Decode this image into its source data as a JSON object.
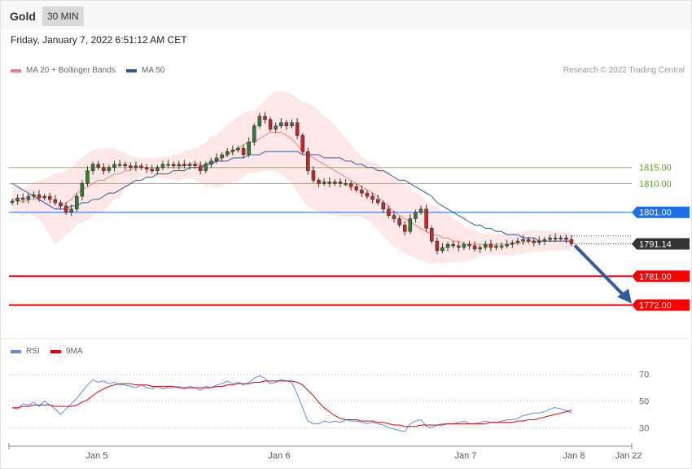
{
  "header": {
    "asset": "Gold",
    "timeframe": "30 MIN"
  },
  "datetime": "Friday, January 7, 2022 6:51:12 AM CET",
  "legend_main": [
    {
      "label": "MA 20 + Bollinger Bands",
      "color": "#f08080"
    },
    {
      "label": "MA 50",
      "color": "#2e5c9e"
    }
  ],
  "credit": "Research © 2022 Trading Central",
  "legend_rsi": [
    {
      "label": "RSI",
      "color": "#5b8def"
    },
    {
      "label": "9MA",
      "color": "#e00000"
    }
  ],
  "colors": {
    "up": "#2e7d32",
    "down": "#c62828",
    "accent": "#2e5c9e",
    "pivot": "#1e6fe8",
    "support": "#ff0000",
    "resistance_green": "#8bbf5a"
  },
  "chart_data": [
    {
      "type": "line",
      "title": "",
      "ylim": [
        1763,
        1847
      ],
      "x_ticks": [
        "Jan 5",
        "Jan 6",
        "Jan 7",
        "Jan 8",
        "Jan 22"
      ],
      "levels": [
        {
          "label": "1815.00",
          "value": 1815.0,
          "kind": "resistance",
          "color": "#8bbf5a"
        },
        {
          "label": "1810.00",
          "value": 1810.0,
          "kind": "resistance",
          "color": "#8bbf5a"
        },
        {
          "label": "1801.00",
          "value": 1801.0,
          "kind": "pivot",
          "color": "#1e6fe8"
        },
        {
          "label": "1791.14",
          "value": 1791.14,
          "kind": "last",
          "color": "#333333"
        },
        {
          "label": "1781.00",
          "value": 1781.0,
          "kind": "support",
          "color": "#ff0000"
        },
        {
          "label": "1772.00",
          "value": 1772.0,
          "kind": "support",
          "color": "#ff0000"
        }
      ],
      "series": [
        {
          "name": "Close",
          "values": [
            1804.5,
            1805.5,
            1805,
            1806,
            1806.5,
            1805.5,
            1806,
            1805,
            1804,
            1803,
            1801,
            1802,
            1806,
            1810,
            1814,
            1816,
            1815,
            1814,
            1815,
            1816,
            1816,
            1815.5,
            1815,
            1815.5,
            1815,
            1814.5,
            1814,
            1815,
            1816,
            1816,
            1815.5,
            1816,
            1815.5,
            1816,
            1815.5,
            1814,
            1816,
            1817,
            1818,
            1819,
            1820,
            1820.5,
            1821,
            1819,
            1823,
            1828,
            1831,
            1830,
            1827,
            1828,
            1829,
            1828,
            1829,
            1825,
            1820,
            1814,
            1811,
            1810,
            1810.5,
            1810,
            1810.5,
            1810,
            1810,
            1809,
            1808,
            1807,
            1806,
            1805,
            1804,
            1802,
            1800,
            1799,
            1797,
            1795,
            1799,
            1801,
            1802,
            1796,
            1792,
            1789,
            1790,
            1791,
            1790.5,
            1790,
            1791,
            1790.5,
            1789.5,
            1790,
            1791,
            1790,
            1790.5,
            1790.5,
            1791,
            1791.5,
            1792,
            1792.5,
            1792,
            1791.5,
            1792,
            1792.5,
            1793,
            1793,
            1793,
            1792.5,
            1791.14
          ]
        },
        {
          "name": "MA 20",
          "values": [
            1805,
            1805,
            1804,
            1805,
            1805,
            1805,
            1804,
            1803,
            1802,
            1803,
            1804,
            1805,
            1807,
            1808,
            1809,
            1810,
            1811,
            1811,
            1812,
            1813,
            1813,
            1814,
            1814,
            1815,
            1815,
            1815,
            1815,
            1815,
            1815,
            1815,
            1815,
            1815,
            1816,
            1816,
            1816,
            1816,
            1816,
            1817,
            1817,
            1818,
            1819,
            1820,
            1821,
            1822,
            1823,
            1823,
            1824,
            1825,
            1826,
            1826,
            1826,
            1825,
            1824,
            1822,
            1820,
            1819,
            1818,
            1817,
            1816,
            1815,
            1814,
            1813,
            1812,
            1811,
            1810,
            1809,
            1808,
            1807,
            1806,
            1804,
            1803,
            1801,
            1800,
            1799,
            1798,
            1797,
            1796,
            1795,
            1794,
            1794,
            1793,
            1793,
            1792,
            1792,
            1791,
            1791,
            1791,
            1791,
            1791,
            1791,
            1791,
            1791,
            1791,
            1791,
            1791.5,
            1791.5,
            1792,
            1792,
            1792,
            1792,
            1792,
            1792,
            1792,
            1792,
            1792
          ]
        },
        {
          "name": "MA 50",
          "values": [
            1810,
            1809,
            1808,
            1807,
            1806,
            1805,
            1804,
            1803,
            1802,
            1802,
            1802,
            1803,
            1803,
            1804,
            1804,
            1805,
            1805,
            1806,
            1807,
            1807,
            1808,
            1809,
            1810,
            1811,
            1811,
            1812,
            1812,
            1813,
            1813,
            1813,
            1814,
            1814,
            1814,
            1815,
            1815,
            1815,
            1816,
            1816,
            1817,
            1817,
            1817,
            1818,
            1818,
            1818,
            1819,
            1819,
            1819,
            1820,
            1820,
            1820,
            1820,
            1820,
            1820,
            1820,
            1819,
            1819,
            1819,
            1819,
            1818,
            1818,
            1818,
            1818,
            1817,
            1817,
            1816,
            1816,
            1815,
            1815,
            1814,
            1814,
            1813,
            1812,
            1811,
            1811,
            1810,
            1809,
            1808,
            1807,
            1806,
            1804,
            1803,
            1802,
            1801,
            1800,
            1799,
            1798,
            1797,
            1797,
            1796,
            1796,
            1795,
            1795,
            1794,
            1794,
            1794,
            1793,
            1793,
            1793,
            1792,
            1792,
            1792,
            1792,
            1792,
            1792,
            1792
          ]
        }
      ]
    },
    {
      "type": "line",
      "title": "",
      "ylim": [
        18,
        82
      ],
      "y_ticks": [
        70,
        50,
        30
      ],
      "series": [
        {
          "name": "RSI",
          "values": [
            45,
            44,
            48,
            47,
            49,
            46,
            50,
            47,
            44,
            40,
            44,
            48,
            52,
            57,
            62,
            66,
            64,
            65,
            63,
            64,
            62,
            62,
            61,
            60,
            62,
            60,
            59,
            61,
            59,
            60,
            60,
            61,
            59,
            61,
            60,
            58,
            61,
            60,
            62,
            63,
            65,
            63,
            64,
            62,
            64,
            67,
            69,
            67,
            63,
            64,
            66,
            65,
            64,
            55,
            45,
            35,
            33,
            33,
            35,
            34,
            35,
            34,
            36,
            35,
            35,
            34,
            33,
            34,
            33,
            32,
            30,
            29,
            28,
            27,
            33,
            35,
            36,
            31,
            30,
            32,
            33,
            33,
            33,
            34,
            35,
            33,
            33,
            34,
            35,
            34,
            34,
            35,
            36,
            36,
            37,
            39,
            40,
            41,
            41,
            42,
            44,
            45,
            44,
            43,
            41
          ]
        },
        {
          "name": "9MA",
          "values": [
            45,
            45,
            46,
            46,
            47,
            47,
            47,
            47,
            46,
            46,
            46,
            46,
            47,
            49,
            51,
            54,
            57,
            59,
            61,
            62,
            63,
            63,
            63,
            62,
            62,
            62,
            61,
            61,
            61,
            61,
            61,
            60,
            60,
            60,
            60,
            60,
            60,
            60,
            61,
            61,
            62,
            62,
            63,
            63,
            63,
            64,
            64,
            65,
            65,
            65,
            65,
            65,
            65,
            64,
            62,
            58,
            54,
            49,
            45,
            42,
            39,
            37,
            36,
            36,
            36,
            35,
            35,
            35,
            34,
            34,
            33,
            32,
            32,
            31,
            31,
            31,
            32,
            32,
            32,
            32,
            32,
            33,
            33,
            33,
            33,
            33,
            33,
            33,
            33,
            34,
            34,
            34,
            34,
            34,
            35,
            35,
            36,
            36,
            37,
            38,
            39,
            40,
            41,
            42,
            43
          ]
        }
      ]
    }
  ]
}
